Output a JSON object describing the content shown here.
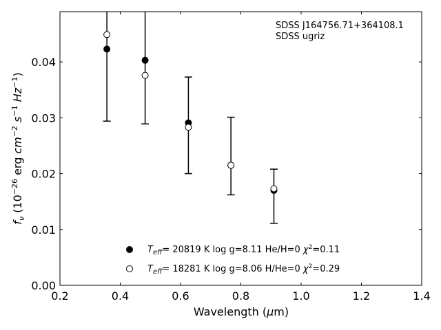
{
  "chart_data": {
    "type": "scatter",
    "title": "",
    "xlabel": "Wavelength (μm)",
    "ylabel": "f_ν (10^−26 erg cm^−2 s^−1 Hz^−1)",
    "xlim": [
      0.2,
      1.4
    ],
    "ylim": [
      0.0,
      0.049
    ],
    "xticks": [
      "0.2",
      "0.4",
      "0.6",
      "0.8",
      "1.0",
      "1.2",
      "1.4"
    ],
    "yticks": [
      "0.00",
      "0.01",
      "0.02",
      "0.03",
      "0.04"
    ],
    "annotations": [
      "SDSS J164756.71+364108.1",
      "SDSS ugriz"
    ],
    "legend_placement": "lower-center",
    "series": [
      {
        "name": "T_eff= 20819 K  log g=8.11  He/H=0  χ²=0.11",
        "marker": "filled-circle",
        "color": "#000000",
        "points": [
          {
            "x": 0.3557,
            "y": 0.0423
          },
          {
            "x": 0.4825,
            "y": 0.0403
          },
          {
            "x": 0.6261,
            "y": 0.0291
          },
          {
            "x": 0.7672,
            "y": 0.0215
          },
          {
            "x": 0.9097,
            "y": 0.017
          }
        ]
      },
      {
        "name": "T_eff= 18281 K  log g=8.06  H/He=0  χ²=0.29",
        "marker": "open-circle",
        "color": "#000000",
        "points": [
          {
            "x": 0.3557,
            "y": 0.0449
          },
          {
            "x": 0.4825,
            "y": 0.0376
          },
          {
            "x": 0.6261,
            "y": 0.0283
          },
          {
            "x": 0.7672,
            "y": 0.0215
          },
          {
            "x": 0.9097,
            "y": 0.0173
          }
        ]
      }
    ],
    "error_bars": [
      {
        "x": 0.3557,
        "low": 0.0294,
        "high": 0.0552
      },
      {
        "x": 0.4825,
        "low": 0.0289,
        "high": 0.0517
      },
      {
        "x": 0.6261,
        "low": 0.02,
        "high": 0.0373
      },
      {
        "x": 0.7672,
        "low": 0.0162,
        "high": 0.0301
      },
      {
        "x": 0.9097,
        "low": 0.0111,
        "high": 0.0208
      }
    ]
  }
}
